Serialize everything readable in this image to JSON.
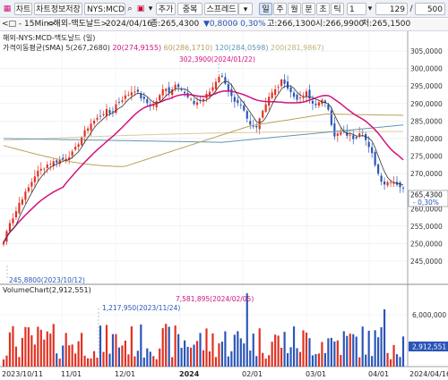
{
  "toolbar": {
    "btn1": "차트",
    "btn2": "차트정보저장",
    "symbol": "NYS:MCD",
    "add": "추가",
    "overlay": "중복",
    "spread": "스프레드",
    "periods": [
      "일",
      "주",
      "월",
      "분",
      "초",
      "틱"
    ],
    "active_period": "일",
    "interval": "1",
    "visible_count": "129",
    "total_count": "500",
    "separator": "/"
  },
  "header": {
    "nav": "<□ - 15Min>",
    "title": "<해외-맥도날드>",
    "date": "2024/04/16",
    "close": "종:265,4300",
    "change": "▼0,8000",
    "change_pct": "- 0,30%",
    "high": "고:266,1300",
    "open": "시:266,9900",
    "low": "저:265,1500"
  },
  "price_panel": {
    "title": "해외-NYS:MCD-맥도날드 (일)",
    "sma_label": "가격이동평균(SMA)",
    "sma": [
      {
        "text": "5(267,2680)",
        "color": "#333333"
      },
      {
        "text": "20(274,9155)",
        "color": "#d4117d"
      },
      {
        "text": "60(286,1710)",
        "color": "#b8a25a"
      },
      {
        "text": "120(284,0598)",
        "color": "#5f96b4"
      },
      {
        "text": "200(281,9867)",
        "color": "#d8cc9c"
      }
    ],
    "high_annotation": "302,3900(2024/01/22)",
    "low_annotation": "245,8800(2023/10/12)",
    "current_price": "265,4300",
    "current_pct": "- 0,30%",
    "y_ticks": [
      "305,0000",
      "300,0000",
      "295,0000",
      "290,0000",
      "285,0000",
      "280,0000",
      "275,0000",
      "270,0000",
      "260,0000",
      "255,0000",
      "250,0000",
      "245,0000"
    ]
  },
  "volume_panel": {
    "title": "VolumeChart",
    "value": "(2,912,551)",
    "annotation1": "1,217,950(2023/11/24)",
    "annotation2": "7,581,895(2024/02/05)",
    "y_tick": "6,000,000",
    "current": "2,912,551"
  },
  "x_axis": {
    "labels": [
      "2023/10/11",
      "11/01",
      "12/01",
      "2024",
      "02/01",
      "03/01",
      "04/01",
      "2024/04/16"
    ]
  },
  "colors": {
    "up": "#e03020",
    "down": "#2a55b8",
    "sma5": "#333333",
    "sma20": "#d4117d",
    "sma60": "#b8a25a",
    "sma120": "#5f96b4",
    "sma200": "#d8cc9c"
  },
  "icons": [
    "chart-icon",
    "search-icon",
    "lock-icon",
    "menu-icon",
    "plus-icon",
    "dropdown-icon"
  ]
}
